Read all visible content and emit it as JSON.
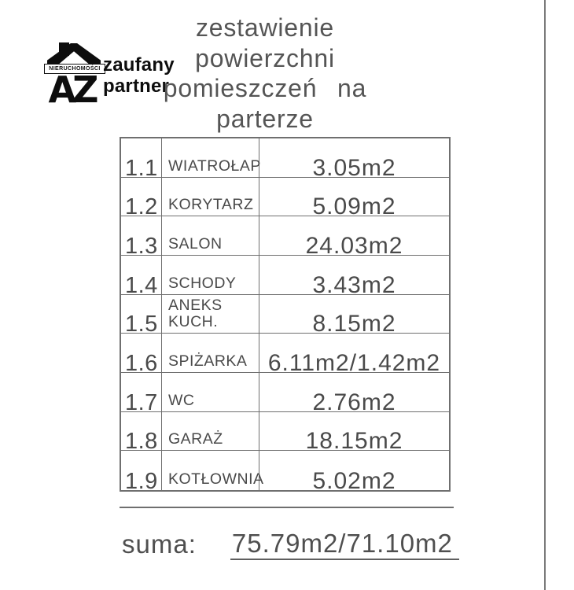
{
  "logo": {
    "banner": "NIERUCHOMOŚCI",
    "monogram": "AZ",
    "tagline_line1": "zaufany",
    "tagline_line2": "partner"
  },
  "title": {
    "line1": "zestawienie",
    "line2": "powierzchni",
    "line3": "pomieszczeń na",
    "line4": "parterze"
  },
  "table": {
    "rows": [
      {
        "no": "1.1",
        "name": "WIATROŁAP",
        "area": "3.05m2"
      },
      {
        "no": "1.2",
        "name": "KORYTARZ",
        "area": "5.09m2"
      },
      {
        "no": "1.3",
        "name": "SALON",
        "area": "24.03m2"
      },
      {
        "no": "1.4",
        "name": "SCHODY",
        "area": "3.43m2"
      },
      {
        "no": "1.5",
        "name": "ANEKS\nKUCH.",
        "area": "8.15m2"
      },
      {
        "no": "1.6",
        "name": "SPIŻARKA",
        "area": "6.11m2/1.42m2"
      },
      {
        "no": "1.7",
        "name": "WC",
        "area": "2.76m2"
      },
      {
        "no": "1.8",
        "name": "GARAŻ",
        "area": "18.15m2"
      },
      {
        "no": "1.9",
        "name": "KOTŁOWNIA",
        "area": "5.02m2"
      }
    ]
  },
  "summary": {
    "label": "suma:",
    "value": "75.79m2/71.10m2"
  },
  "colors": {
    "text": "#4a4a4a",
    "table_line": "#6f6f6f",
    "logo_black": "#0d0d0d",
    "page_rule": "#7a7a7a"
  }
}
